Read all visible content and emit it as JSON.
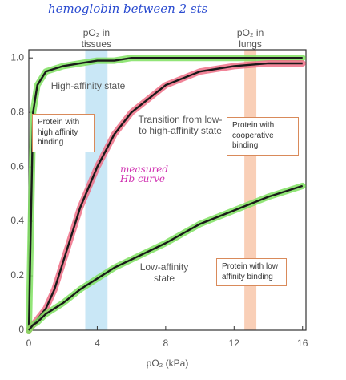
{
  "chart_data": {
    "type": "line",
    "handwritten_title": "hemoglobin between 2 sts",
    "xlabel": "pO₂ (kPa)",
    "xlim": [
      0,
      16.2
    ],
    "ylim": [
      0,
      1.03
    ],
    "xticks": [
      0,
      4,
      8,
      12,
      16
    ],
    "yticks": [
      0,
      0.2,
      0.4,
      0.6,
      0.8,
      {
        "value": 1,
        "label": "1.0"
      }
    ],
    "bands": [
      {
        "label": "pO₂ in tissues",
        "range": [
          3.3,
          4.6
        ],
        "color": "#bfe3f5"
      },
      {
        "label": "pO₂ in lungs",
        "range": [
          12.6,
          13.3
        ],
        "color": "#f8c7aa"
      }
    ],
    "x": [
      0,
      0.25,
      0.5,
      1,
      1.5,
      2,
      3,
      4,
      5,
      6,
      8,
      10,
      12,
      14,
      16
    ],
    "series": [
      {
        "name": "High-affinity state",
        "box": "Protein with high affinity binding",
        "color": "#1a1a1a",
        "highlight": "#7fe060",
        "values": [
          0,
          0.8,
          0.9,
          0.95,
          0.96,
          0.97,
          0.98,
          0.99,
          0.99,
          1,
          1,
          1,
          1,
          1,
          1
        ]
      },
      {
        "name": "Transition from low- to high-affinity state",
        "box": "Protein with cooperative binding",
        "color": "#1a1a1a",
        "highlight": "#ee6f86",
        "values": [
          0,
          0.02,
          0.04,
          0.08,
          0.15,
          0.25,
          0.45,
          0.6,
          0.72,
          0.8,
          0.9,
          0.95,
          0.97,
          0.98,
          0.98
        ]
      },
      {
        "name": "Low-affinity state",
        "box": "Protein with low affinity binding",
        "color": "#1a1a1a",
        "highlight": "#7fe060",
        "values": [
          0,
          0.02,
          0.03,
          0.06,
          0.08,
          0.1,
          0.15,
          0.19,
          0.23,
          0.26,
          0.32,
          0.39,
          0.44,
          0.49,
          0.53
        ]
      }
    ],
    "annotation": "measured Hb curve"
  }
}
